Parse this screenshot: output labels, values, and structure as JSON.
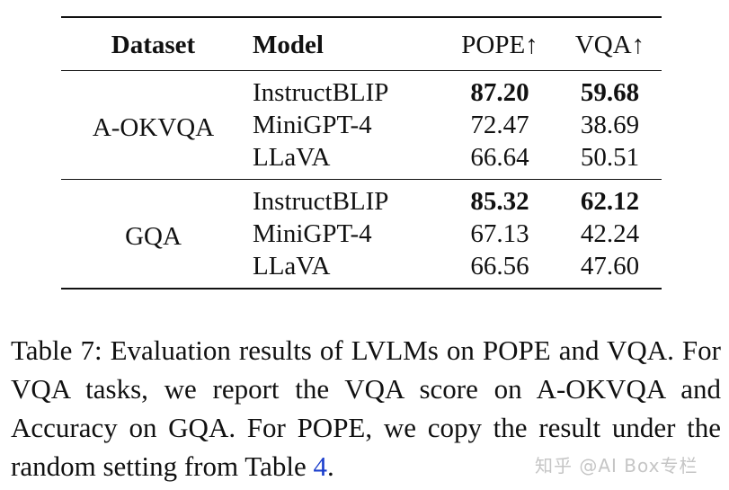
{
  "table": {
    "headers": {
      "dataset": "Dataset",
      "model": "Model",
      "pope": "POPE↑",
      "vqa": "VQA↑"
    },
    "groups": [
      {
        "dataset": "A-OKVQA",
        "rows": [
          {
            "model": "InstructBLIP",
            "pope": "87.20",
            "vqa": "59.68"
          },
          {
            "model": "MiniGPT-4",
            "pope": "72.47",
            "vqa": "38.69"
          },
          {
            "model": "LLaVA",
            "pope": "66.64",
            "vqa": "50.51"
          }
        ]
      },
      {
        "dataset": "GQA",
        "rows": [
          {
            "model": "InstructBLIP",
            "pope": "85.32",
            "vqa": "62.12"
          },
          {
            "model": "MiniGPT-4",
            "pope": "67.13",
            "vqa": "42.24"
          },
          {
            "model": "LLaVA",
            "pope": "66.56",
            "vqa": "47.60"
          }
        ]
      }
    ]
  },
  "caption": {
    "text": "Table 7: Evaluation results of LVLMs on POPE and VQA. For VQA tasks, we report the VQA score on A-OKVQA and Accuracy on GQA. For POPE, we copy the result under the random setting from Table ",
    "ref": "4",
    "end": "."
  },
  "watermark": "知乎 @AI Box专栏"
}
